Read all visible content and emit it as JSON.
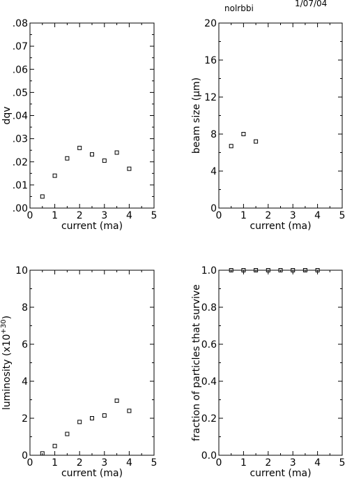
{
  "header": {
    "code": "nolrbbi",
    "date": "1/07/04"
  },
  "chart_data": [
    {
      "type": "scatter",
      "xlabel": "current (ma)",
      "ylabel": "dqv",
      "xlim": [
        0,
        5
      ],
      "ylim": [
        0,
        0.08
      ],
      "xticks": [
        "0",
        "1",
        "2",
        "3",
        "4",
        "5"
      ],
      "yticks": [
        ".00",
        ".01",
        ".02",
        ".03",
        ".04",
        ".05",
        ".06",
        ".07",
        ".08"
      ],
      "series": [
        {
          "x": [
            0.5,
            1,
            1.5,
            2,
            2.5,
            3,
            3.5,
            4
          ],
          "y": [
            0.005,
            0.014,
            0.0215,
            0.026,
            0.0232,
            0.0205,
            0.024,
            0.017
          ]
        }
      ]
    },
    {
      "type": "scatter",
      "xlabel": "current (ma)",
      "ylabel": "beam size (μm)",
      "xlim": [
        0,
        5
      ],
      "ylim": [
        0,
        20
      ],
      "xticks": [
        "0",
        "1",
        "2",
        "3",
        "4",
        "5"
      ],
      "yticks": [
        "0",
        "4",
        "8",
        "12",
        "16",
        "20"
      ],
      "series": [
        {
          "x": [
            0.5,
            1,
            1.5
          ],
          "y": [
            6.7,
            8.0,
            7.2
          ]
        }
      ]
    },
    {
      "type": "scatter",
      "xlabel": "current (ma)",
      "ylabel": "luminosity (x10",
      "ylabel_exp": "+30",
      "ylabel_close": ")",
      "xlim": [
        0,
        5
      ],
      "ylim": [
        0,
        10
      ],
      "xticks": [
        "0",
        "1",
        "2",
        "3",
        "4",
        "5"
      ],
      "yticks": [
        "0",
        "2",
        "4",
        "6",
        "8",
        "10"
      ],
      "series": [
        {
          "x": [
            0.5,
            1,
            1.5,
            2,
            2.5,
            3,
            3.5,
            4
          ],
          "y": [
            0.1,
            0.5,
            1.15,
            1.8,
            2.0,
            2.15,
            2.95,
            2.4
          ]
        }
      ]
    },
    {
      "type": "scatter",
      "xlabel": "current (ma)",
      "ylabel": "fraction of particles that survive",
      "xlim": [
        0,
        5
      ],
      "ylim": [
        0,
        1
      ],
      "xticks": [
        "0",
        "1",
        "2",
        "3",
        "4",
        "5"
      ],
      "yticks": [
        "0.0",
        "0.2",
        "0.4",
        "0.6",
        "0.8",
        "1.0"
      ],
      "series": [
        {
          "x": [
            0.5,
            1,
            1.5,
            2,
            2.5,
            3,
            3.5,
            4
          ],
          "y": [
            1,
            1,
            1,
            1,
            1,
            1,
            1,
            1
          ]
        }
      ]
    }
  ]
}
